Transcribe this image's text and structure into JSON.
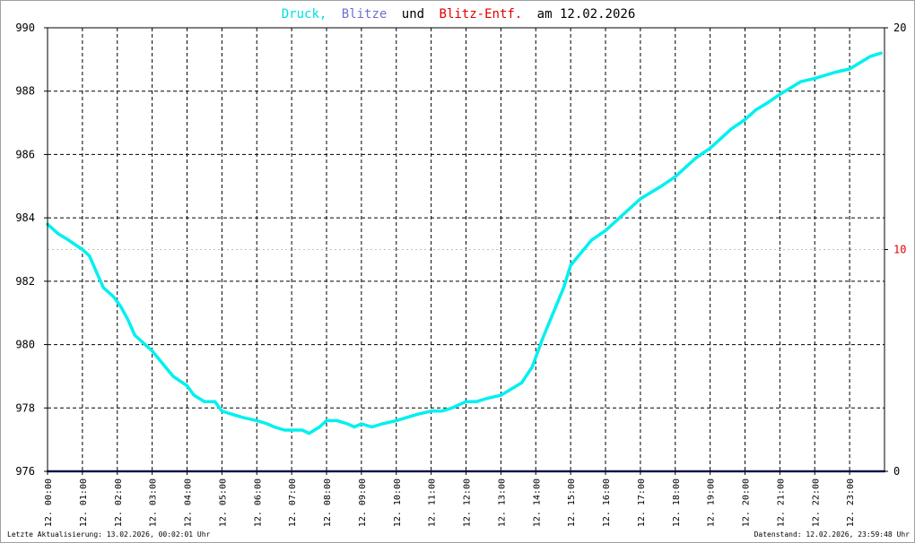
{
  "title": {
    "part1": "Druck,",
    "part2": "Blitze",
    "part3": "und",
    "part4": "Blitz-Entf.",
    "part5": "am 12.02.2026",
    "color1": "#00e0e0",
    "color2": "#7070d0",
    "color3": "#000000",
    "color4": "#e00000",
    "color5": "#000000"
  },
  "footer": {
    "left": "Letzte Aktualisierung: 13.02.2026, 00:02:01 Uhr",
    "right": "Datenstand: 12.02.2026, 23:59:48 Uhr"
  },
  "chart_data": {
    "type": "line",
    "title": "Druck, Blitze und Blitz-Entf. am 12.02.2026",
    "x_ticks": [
      "12. 00:00",
      "12. 01:00",
      "12. 02:00",
      "12. 03:00",
      "12. 04:00",
      "12. 05:00",
      "12. 06:00",
      "12. 07:00",
      "12. 08:00",
      "12. 09:00",
      "12. 10:00",
      "12. 11:00",
      "12. 12:00",
      "12. 13:00",
      "12. 14:00",
      "12. 15:00",
      "12. 16:00",
      "12. 17:00",
      "12. 18:00",
      "12. 19:00",
      "12. 20:00",
      "12. 21:00",
      "12. 22:00",
      "12. 23:00"
    ],
    "xlim": [
      0,
      24
    ],
    "y_left": {
      "ylim": [
        976,
        990
      ],
      "ticks": [
        "976",
        "978",
        "980",
        "982",
        "984",
        "986",
        "988",
        "990"
      ]
    },
    "y_right": {
      "ylim": [
        0,
        20
      ],
      "ticks": [
        "0",
        "10",
        "20"
      ],
      "tick_colors": [
        "#000000",
        "#e00000",
        "#000000"
      ]
    },
    "grid": true,
    "series": [
      {
        "name": "Druck",
        "color": "#00f0f0",
        "axis": "left",
        "x": [
          0.0,
          0.3,
          0.6,
          1.0,
          1.2,
          1.4,
          1.6,
          1.9,
          2.1,
          2.3,
          2.5,
          2.8,
          3.0,
          3.3,
          3.6,
          4.0,
          4.2,
          4.5,
          4.8,
          5.0,
          5.3,
          5.6,
          6.0,
          6.3,
          6.5,
          6.8,
          7.0,
          7.3,
          7.5,
          7.8,
          8.0,
          8.3,
          8.6,
          8.8,
          9.0,
          9.3,
          9.6,
          10.0,
          10.3,
          10.6,
          11.0,
          11.3,
          11.6,
          12.0,
          12.3,
          12.6,
          13.0,
          13.3,
          13.6,
          13.9,
          14.2,
          14.5,
          14.8,
          15.0,
          15.3,
          15.6,
          16.0,
          16.3,
          16.7,
          17.0,
          17.3,
          17.6,
          18.0,
          18.3,
          18.6,
          19.0,
          19.3,
          19.6,
          20.0,
          20.3,
          20.6,
          21.0,
          21.3,
          21.6,
          22.0,
          22.3,
          22.6,
          23.0,
          23.3,
          23.6,
          23.9
        ],
        "values": [
          983.8,
          983.5,
          983.3,
          983.0,
          982.8,
          982.3,
          981.8,
          981.5,
          981.2,
          980.8,
          980.3,
          980.0,
          979.8,
          979.4,
          979.0,
          978.7,
          978.4,
          978.2,
          978.2,
          977.9,
          977.8,
          977.7,
          977.6,
          977.5,
          977.4,
          977.3,
          977.3,
          977.3,
          977.2,
          977.4,
          977.6,
          977.6,
          977.5,
          977.4,
          977.5,
          977.4,
          977.5,
          977.6,
          977.7,
          977.8,
          977.9,
          977.9,
          978.0,
          978.2,
          978.2,
          978.3,
          978.4,
          978.6,
          978.8,
          979.3,
          980.2,
          981.0,
          981.8,
          982.5,
          982.9,
          983.3,
          983.6,
          983.9,
          984.3,
          984.6,
          984.8,
          985.0,
          985.3,
          985.6,
          985.9,
          986.2,
          986.5,
          986.8,
          987.1,
          987.4,
          987.6,
          987.9,
          988.1,
          988.3,
          988.4,
          988.5,
          988.6,
          988.7,
          988.9,
          989.1,
          989.2
        ]
      },
      {
        "name": "Blitze",
        "color": "#202080",
        "axis": "right",
        "x": [
          0,
          24
        ],
        "values": [
          0,
          0
        ]
      }
    ]
  }
}
